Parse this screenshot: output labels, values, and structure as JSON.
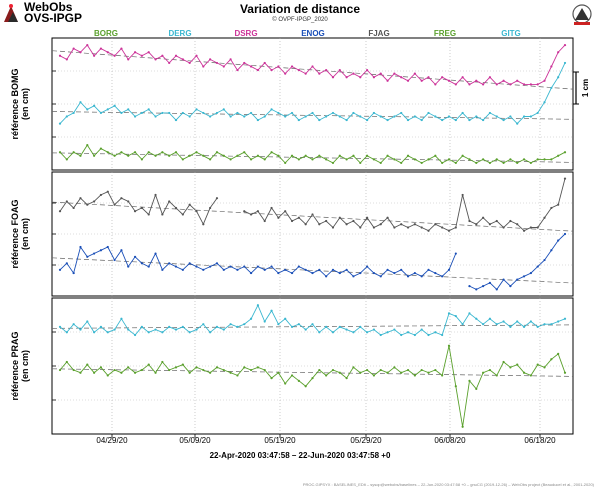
{
  "brand": {
    "line1": "WebObs",
    "line2": "OVS-IPGP",
    "right_logo": "ipgp-logo-icon"
  },
  "title": "Variation de distance",
  "credit": "© OVPF-IPGP_2020",
  "range_label": "22-Apr-2020 03:47:58 – 22-Jun-2020 03:47:58 +0",
  "footer": "PROC.GIPSYX : BASELINES_EDlt – sysop@webobs/baselines – 22-Jun-2020 03:47:58 +0 – gnuCG (2019-12-26) – WebObs project (Beauducel et al., 2001-2020)",
  "scale_label": "1 cm",
  "chart_data": {
    "type": "line",
    "x_ticks": [
      "04/29/20",
      "05/09/20",
      "05/19/20",
      "05/29/20",
      "06/08/20",
      "06/18/20"
    ],
    "legend": [
      {
        "name": "BORG",
        "color": "#5aa02c"
      },
      {
        "name": "DERG",
        "color": "#3ab7d0"
      },
      {
        "name": "DSRG",
        "color": "#cc3399"
      },
      {
        "name": "ENOG",
        "color": "#1a4fb8"
      },
      {
        "name": "FJAG",
        "color": "#555555"
      },
      {
        "name": "FREG",
        "color": "#5aa02c"
      },
      {
        "name": "GITG",
        "color": "#3ab7d0"
      }
    ],
    "panels": [
      {
        "ylabel": "référence BOMG\n(en cm)",
        "series": [
          {
            "color": "#cc3399",
            "y": [
              3.6,
              3.5,
              3.8,
              3.7,
              3.9,
              3.6,
              3.8,
              3.7,
              3.6,
              3.8,
              3.5,
              3.7,
              3.6,
              3.7,
              3.5,
              3.6,
              3.4,
              3.6,
              3.5,
              3.4,
              3.6,
              3.3,
              3.5,
              3.4,
              3.3,
              3.5,
              3.2,
              3.4,
              3.3,
              3.2,
              3.4,
              3.2,
              3.3,
              3.1,
              3.3,
              3.2,
              3.1,
              3.3,
              3.1,
              3.2,
              3.0,
              3.2,
              3.0,
              3.1,
              3.0,
              3.2,
              3.0,
              3.1,
              2.9,
              3.1,
              3.0,
              2.9,
              3.1,
              2.9,
              3.0,
              2.8,
              3.0,
              2.9,
              2.8,
              3.0,
              2.8,
              2.9,
              2.8,
              3.0,
              2.8,
              2.9,
              2.8,
              2.9,
              2.8,
              2.8,
              2.8,
              2.9,
              3.3,
              3.7,
              3.9
            ]
          },
          {
            "color": "#3ab7d0",
            "y": [
              1.7,
              1.9,
              2.0,
              2.3,
              2.1,
              2.2,
              2.0,
              2.1,
              2.2,
              2.0,
              2.1,
              1.9,
              2.0,
              2.1,
              1.9,
              2.0,
              2.0,
              1.8,
              2.0,
              1.9,
              2.1,
              2.0,
              1.9,
              2.0,
              2.1,
              1.9,
              2.0,
              1.9,
              2.0,
              1.8,
              1.9,
              2.1,
              2.0,
              1.9,
              2.0,
              1.8,
              1.9,
              2.0,
              1.8,
              1.9,
              2.0,
              1.9,
              1.8,
              2.0,
              1.9,
              1.8,
              2.0,
              1.9,
              1.8,
              1.9,
              2.0,
              1.8,
              1.9,
              1.8,
              2.0,
              1.9,
              1.8,
              1.9,
              1.8,
              2.0,
              1.8,
              1.9,
              1.8,
              2.0,
              1.9,
              1.8,
              1.9,
              1.7,
              1.9,
              1.9,
              2.0,
              2.3,
              2.7,
              3.0,
              3.4
            ]
          },
          {
            "color": "#5aa02c",
            "y": [
              0.9,
              0.7,
              0.9,
              0.8,
              1.1,
              0.8,
              1.0,
              0.9,
              0.8,
              0.9,
              0.8,
              0.9,
              0.7,
              0.9,
              0.8,
              0.9,
              0.8,
              0.9,
              0.7,
              0.8,
              0.9,
              0.8,
              0.7,
              0.9,
              0.8,
              0.7,
              0.8,
              0.9,
              0.7,
              0.8,
              0.7,
              0.9,
              0.8,
              0.6,
              0.8,
              0.7,
              0.8,
              0.7,
              0.8,
              0.7,
              0.6,
              0.8,
              0.7,
              0.8,
              0.6,
              0.8,
              0.7,
              0.6,
              0.8,
              0.7,
              0.6,
              0.8,
              0.7,
              0.6,
              0.7,
              0.8,
              0.6,
              0.7,
              0.6,
              0.8,
              0.7,
              0.6,
              0.7,
              0.6,
              0.7,
              0.6,
              0.7,
              0.6,
              0.7,
              0.6,
              0.7,
              0.7,
              0.7,
              0.8,
              0.9
            ]
          }
        ]
      },
      {
        "ylabel": "référence FOAG\n(en cm)",
        "series": [
          {
            "color": "#555555",
            "y": [
              3.0,
              3.3,
              3.1,
              3.4,
              3.2,
              3.3,
              3.5,
              3.6,
              3.2,
              3.4,
              3.3,
              3.0,
              3.1,
              2.9,
              3.5,
              2.9,
              3.3,
              3.1,
              2.9,
              3.2,
              3.0,
              2.6,
              3.1,
              3.4,
              null,
              null,
              null,
              3.0,
              2.9,
              3.0,
              2.7,
              3.1,
              2.8,
              3.0,
              2.7,
              2.8,
              2.6,
              2.9,
              2.6,
              2.7,
              2.5,
              2.8,
              2.6,
              2.7,
              2.5,
              2.8,
              2.5,
              2.6,
              2.8,
              2.5,
              2.6,
              2.5,
              2.6,
              2.5,
              2.4,
              2.6,
              2.5,
              2.4,
              2.5,
              3.5,
              2.7,
              2.6,
              2.8,
              2.6,
              2.7,
              2.5,
              2.7,
              2.6,
              2.4,
              2.5,
              2.5,
              2.8,
              3.1,
              3.2,
              4.0
            ]
          },
          {
            "color": "#1a4fb8",
            "y": [
              1.2,
              1.4,
              1.1,
              1.9,
              1.6,
              1.7,
              1.8,
              1.9,
              1.5,
              1.8,
              1.3,
              1.6,
              1.4,
              1.3,
              1.7,
              1.2,
              1.4,
              1.3,
              1.2,
              1.4,
              1.3,
              1.2,
              1.3,
              1.4,
              1.2,
              1.3,
              1.2,
              1.3,
              1.1,
              1.3,
              1.2,
              1.3,
              1.1,
              1.2,
              1.1,
              1.3,
              1.2,
              1.1,
              1.2,
              1.0,
              1.2,
              1.1,
              1.2,
              1.0,
              1.1,
              1.3,
              1.1,
              1.0,
              1.2,
              1.1,
              1.2,
              1.0,
              1.1,
              1.0,
              1.2,
              1.1,
              1.0,
              1.2,
              1.7,
              null,
              0.7,
              0.6,
              0.7,
              0.8,
              0.6,
              0.9,
              0.7,
              0.9,
              1.0,
              1.1,
              1.3,
              1.5,
              1.8,
              2.1,
              2.3
            ]
          }
        ]
      },
      {
        "ylabel": "référence PRAG\n(en cm)",
        "series": [
          {
            "color": "#3ab7d0",
            "y": [
              3.2,
              3.0,
              3.3,
              3.1,
              3.4,
              3.0,
              3.2,
              3.0,
              3.1,
              3.5,
              3.1,
              2.9,
              3.2,
              3.0,
              3.1,
              3.0,
              3.2,
              3.1,
              3.2,
              3.0,
              3.1,
              3.3,
              3.0,
              3.2,
              3.1,
              3.3,
              3.2,
              3.3,
              3.5,
              4.0,
              3.4,
              3.8,
              3.3,
              3.5,
              3.2,
              3.3,
              3.1,
              3.3,
              3.0,
              3.2,
              3.0,
              3.2,
              3.1,
              3.0,
              3.2,
              3.0,
              3.1,
              2.9,
              3.0,
              3.1,
              2.9,
              3.0,
              2.9,
              3.1,
              2.9,
              3.0,
              2.9,
              3.7,
              3.6,
              3.3,
              3.7,
              3.5,
              3.3,
              3.5,
              3.3,
              3.4,
              3.2,
              3.4,
              3.2,
              3.4,
              3.2,
              3.3,
              3.3,
              3.4,
              3.5
            ]
          },
          {
            "color": "#5aa02c",
            "y": [
              1.6,
              1.9,
              1.6,
              1.5,
              1.8,
              1.5,
              1.7,
              1.4,
              1.6,
              1.5,
              1.7,
              1.5,
              1.6,
              1.8,
              1.5,
              1.9,
              1.6,
              1.7,
              1.8,
              1.5,
              1.7,
              1.6,
              1.5,
              1.7,
              1.6,
              1.5,
              1.4,
              1.7,
              1.6,
              1.7,
              1.6,
              1.3,
              1.5,
              1.1,
              1.4,
              1.2,
              1.0,
              1.3,
              1.6,
              1.4,
              1.6,
              1.5,
              1.3,
              1.7,
              1.5,
              1.6,
              1.4,
              1.6,
              1.5,
              1.7,
              1.5,
              1.6,
              1.4,
              1.6,
              1.5,
              1.6,
              1.4,
              2.5,
              1.0,
              -0.5,
              1.2,
              0.9,
              1.5,
              1.6,
              1.4,
              1.9,
              1.7,
              1.8,
              1.5,
              1.4,
              1.8,
              1.7,
              2.0,
              2.2,
              1.5
            ]
          }
        ]
      }
    ]
  }
}
